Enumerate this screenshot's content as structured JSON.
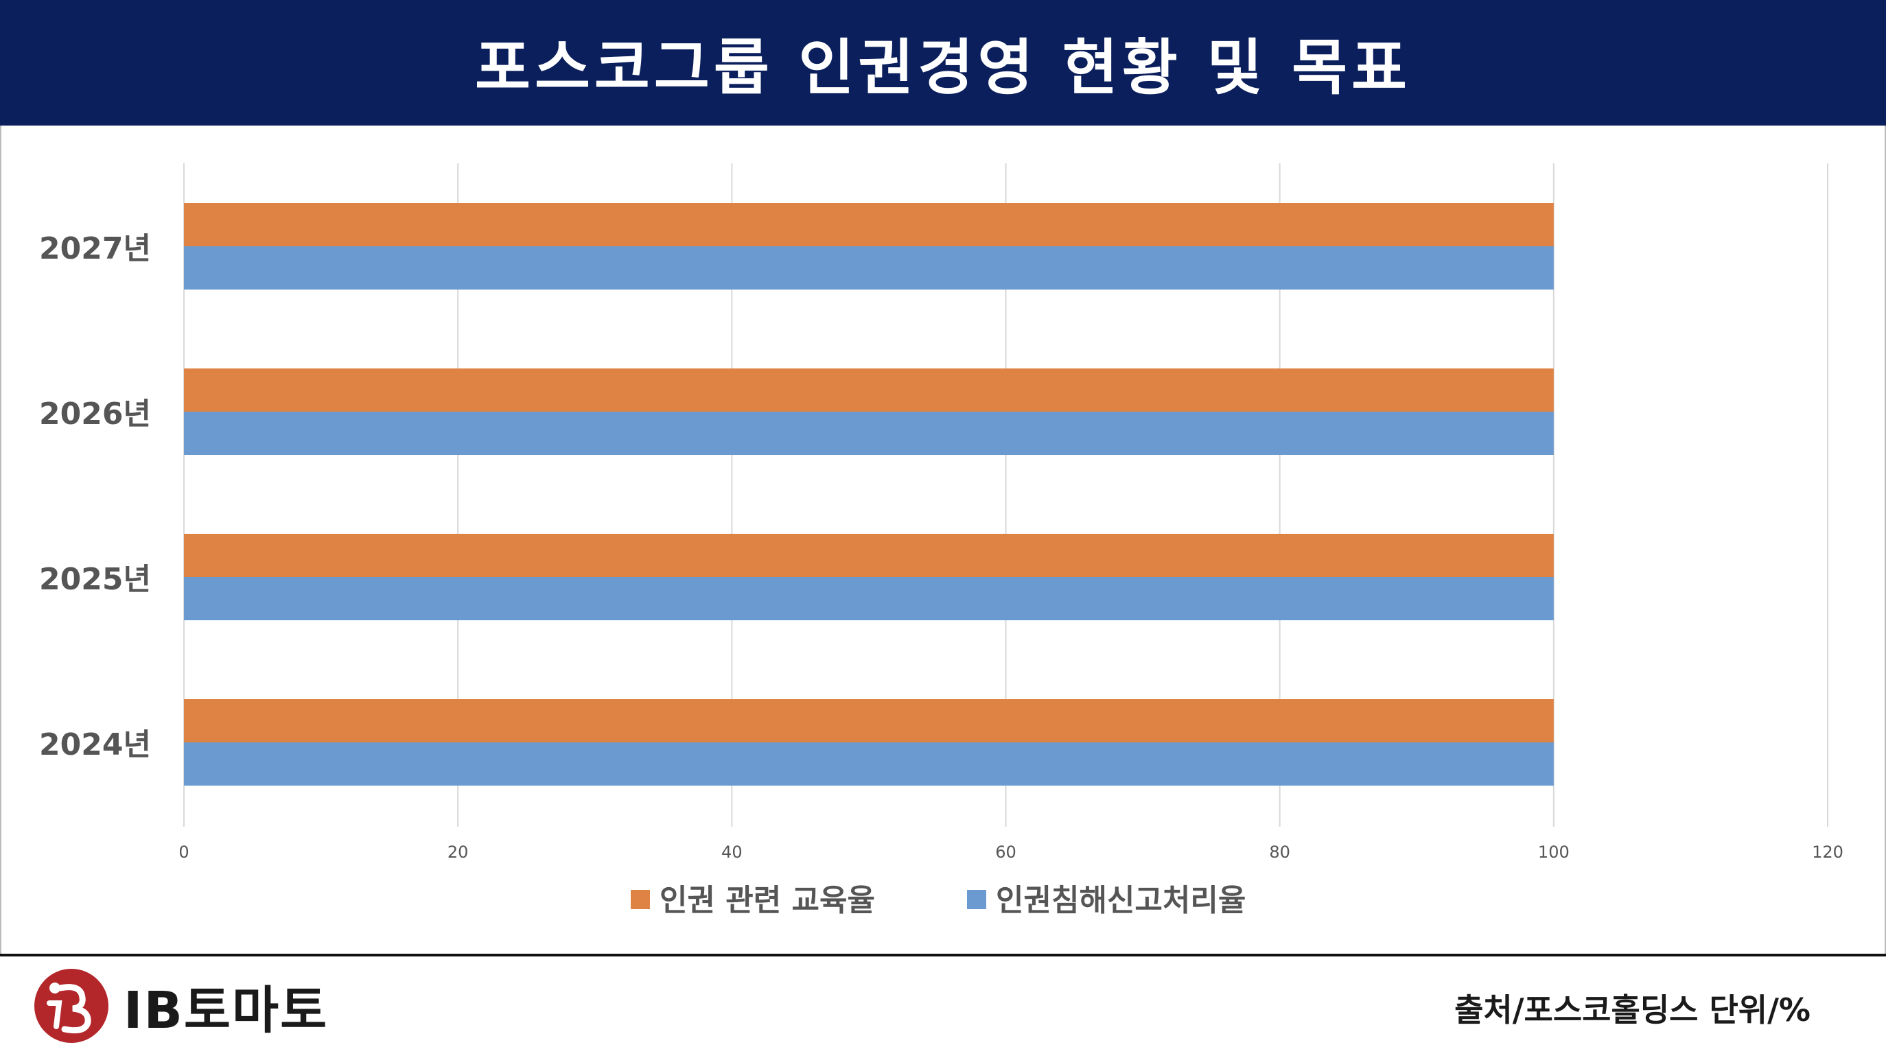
{
  "header": {
    "title": "포스코그룹 인권경영 현황 및 목표"
  },
  "chart_data": {
    "type": "bar",
    "orientation": "horizontal",
    "categories": [
      "2027년",
      "2026년",
      "2025년",
      "2024년"
    ],
    "series": [
      {
        "name": "인권 관련 교육율",
        "color": "#df8344",
        "values": [
          100,
          100,
          100,
          100
        ]
      },
      {
        "name": "인권침해신고처리율",
        "color": "#6a9ad0",
        "values": [
          100,
          100,
          100,
          100
        ]
      }
    ],
    "xticks": [
      "0",
      "20",
      "40",
      "60",
      "80",
      "100",
      "120"
    ],
    "xlim": [
      0,
      120
    ],
    "grid": true,
    "legend_position": "bottom"
  },
  "footer": {
    "logo_text": "IB토마토",
    "source": "출처/포스코홀딩스 단위/%"
  }
}
